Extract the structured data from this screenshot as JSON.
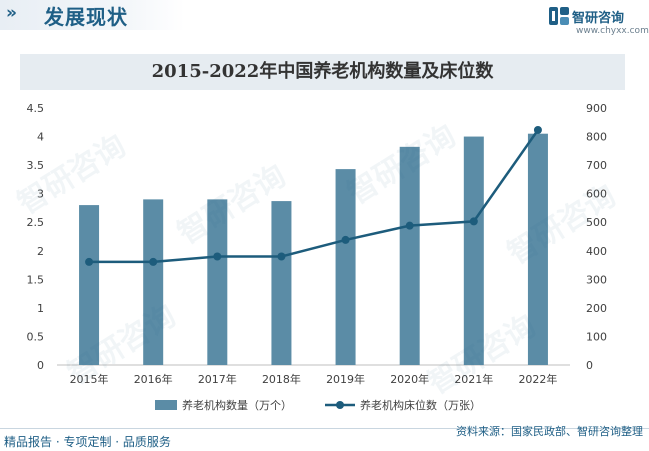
{
  "header": {
    "title": "发展现状",
    "chevron": "»"
  },
  "brand": {
    "name": "智研咨询",
    "url": "www.chyxx.com",
    "logo_icon": "chyxx-logo-icon",
    "color": "#1f5f86"
  },
  "chart_data": {
    "type": "bar",
    "title": "2015-2022年中国养老机构数量及床位数",
    "categories": [
      "2015年",
      "2016年",
      "2017年",
      "2018年",
      "2019年",
      "2020年",
      "2021年",
      "2022年"
    ],
    "series": [
      {
        "name": "养老机构数量（万个）",
        "type": "bar",
        "axis": "left",
        "color": "#5b8ca6",
        "values": [
          2.8,
          2.9,
          2.9,
          2.87,
          3.43,
          3.82,
          4.0,
          4.05
        ]
      },
      {
        "name": "养老机构床位数（万张）",
        "type": "line",
        "axis": "right",
        "color": "#1d5c7c",
        "values": [
          361,
          361,
          380,
          380,
          438,
          488,
          503,
          823
        ]
      }
    ],
    "y_left": {
      "min": 0,
      "max": 4.5,
      "step": 0.5,
      "ticks": [
        "0",
        "0.5",
        "1",
        "1.5",
        "2",
        "2.5",
        "3",
        "3.5",
        "4",
        "4.5"
      ]
    },
    "y_right": {
      "min": 0,
      "max": 900,
      "step": 100,
      "ticks": [
        "0",
        "100",
        "200",
        "300",
        "400",
        "500",
        "600",
        "700",
        "800",
        "900"
      ]
    },
    "grid": false,
    "legend_position": "bottom"
  },
  "footer": {
    "left": "精品报告 · 专项定制 · 品质服务",
    "source": "资料来源：国家民政部、智研咨询整理"
  },
  "watermark_text": "智研咨询"
}
